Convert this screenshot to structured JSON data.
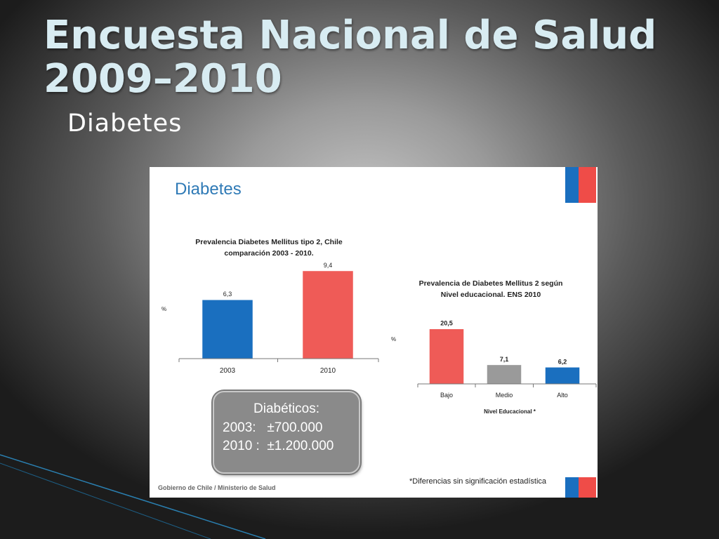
{
  "slide": {
    "title_line1": "Encuesta Nacional de Salud",
    "title_line2": "2009–2010",
    "subtitle": "Diabetes"
  },
  "panel": {
    "title": "Diabetes",
    "footer_left": "Gobierno de Chile / Ministerio de Salud",
    "footnote": "*Diferencias sin significación estadística"
  },
  "callout": {
    "title": "Diabéticos:",
    "line1": "2003:   ±700.000",
    "line2": "2010 :  ±1.200.000"
  },
  "colors": {
    "blue": "#1a6fbf",
    "red": "#ef5b57",
    "gray": "#9a9a9a",
    "title_blue": "#2f7ab6"
  },
  "chart_data": [
    {
      "type": "bar",
      "title_lines": [
        "Prevalencia Diabetes Mellitus tipo 2, Chile",
        "comparación 2003 - 2010."
      ],
      "ylabel": "%",
      "xlabel": "",
      "categories": [
        "2003",
        "2010"
      ],
      "values": [
        6.3,
        9.4
      ],
      "value_labels": [
        "6,3",
        "9,4"
      ],
      "colors": [
        "#1a6fbf",
        "#ef5b57"
      ],
      "ylim": [
        0,
        10
      ],
      "grid": false
    },
    {
      "type": "bar",
      "title_lines": [
        "Prevalencia de Diabetes Mellitus 2 según",
        "Nivel educacional. ENS 2010"
      ],
      "ylabel": "%",
      "xlabel": "Nivel Educacional *",
      "categories": [
        "Bajo",
        "Medio",
        "Alto"
      ],
      "values": [
        20.5,
        7.1,
        6.2
      ],
      "value_labels": [
        "20,5",
        "7,1",
        "6,2"
      ],
      "colors": [
        "#ef5b57",
        "#9a9a9a",
        "#1a6fbf"
      ],
      "ylim": [
        0,
        22
      ],
      "grid": false
    }
  ]
}
